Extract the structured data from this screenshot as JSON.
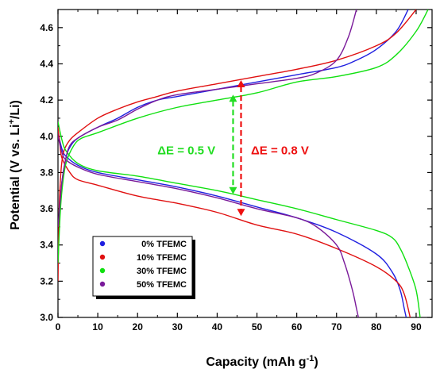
{
  "chart_data": {
    "type": "line",
    "xlabel": "Capacity (mAh g",
    "xlabel_sup": "-1",
    "xlabel_end": ")",
    "ylabel_prefix": "Potential (V vs. Li",
    "ylabel_sup": "+",
    "ylabel_suffix": "/Li)",
    "xlim": [
      0,
      94
    ],
    "ylim": [
      3.0,
      4.7
    ],
    "x_ticks": [
      0,
      10,
      20,
      30,
      40,
      50,
      60,
      70,
      80,
      90
    ],
    "y_ticks": [
      "3.0",
      "3.2",
      "3.4",
      "3.6",
      "3.8",
      "4.0",
      "4.2",
      "4.4",
      "4.6"
    ],
    "legend_position": "bottom-left",
    "series": [
      {
        "name": "0% TFEMC",
        "color": "#1f1fe0",
        "charge": [
          [
            0,
            3.3
          ],
          [
            0.4,
            3.55
          ],
          [
            1,
            3.75
          ],
          [
            2,
            3.88
          ],
          [
            3,
            3.94
          ],
          [
            5,
            3.99
          ],
          [
            10,
            4.05
          ],
          [
            15,
            4.1
          ],
          [
            20,
            4.16
          ],
          [
            25,
            4.2
          ],
          [
            30,
            4.22
          ],
          [
            40,
            4.26
          ],
          [
            50,
            4.3
          ],
          [
            60,
            4.34
          ],
          [
            70,
            4.38
          ],
          [
            75,
            4.42
          ],
          [
            80,
            4.48
          ],
          [
            85,
            4.58
          ],
          [
            88,
            4.7
          ]
        ],
        "discharge": [
          [
            0,
            4.02
          ],
          [
            1,
            3.93
          ],
          [
            2,
            3.89
          ],
          [
            5,
            3.84
          ],
          [
            10,
            3.8
          ],
          [
            20,
            3.76
          ],
          [
            30,
            3.72
          ],
          [
            40,
            3.67
          ],
          [
            50,
            3.61
          ],
          [
            60,
            3.55
          ],
          [
            70,
            3.47
          ],
          [
            80,
            3.35
          ],
          [
            84,
            3.25
          ],
          [
            86,
            3.15
          ],
          [
            87,
            3.05
          ],
          [
            87.5,
            3.0
          ]
        ]
      },
      {
        "name": "10% TFEMC",
        "color": "#e01010",
        "charge": [
          [
            0,
            3.2
          ],
          [
            0.3,
            3.6
          ],
          [
            0.8,
            3.82
          ],
          [
            1.5,
            3.92
          ],
          [
            3,
            3.98
          ],
          [
            5,
            4.02
          ],
          [
            10,
            4.1
          ],
          [
            15,
            4.15
          ],
          [
            20,
            4.19
          ],
          [
            25,
            4.22
          ],
          [
            30,
            4.25
          ],
          [
            40,
            4.29
          ],
          [
            50,
            4.33
          ],
          [
            60,
            4.37
          ],
          [
            70,
            4.42
          ],
          [
            80,
            4.5
          ],
          [
            85,
            4.57
          ],
          [
            90,
            4.7
          ]
        ],
        "discharge": [
          [
            0,
            4.05
          ],
          [
            0.5,
            3.95
          ],
          [
            1,
            3.88
          ],
          [
            3,
            3.8
          ],
          [
            5,
            3.76
          ],
          [
            10,
            3.73
          ],
          [
            20,
            3.67
          ],
          [
            30,
            3.63
          ],
          [
            40,
            3.58
          ],
          [
            50,
            3.51
          ],
          [
            60,
            3.46
          ],
          [
            70,
            3.38
          ],
          [
            80,
            3.28
          ],
          [
            85,
            3.2
          ],
          [
            87,
            3.13
          ],
          [
            88.5,
            3.0
          ]
        ]
      },
      {
        "name": "30% TFEMC",
        "color": "#10e010",
        "charge": [
          [
            0,
            3.3
          ],
          [
            0.5,
            3.55
          ],
          [
            1,
            3.7
          ],
          [
            2,
            3.85
          ],
          [
            4,
            3.95
          ],
          [
            6,
            3.99
          ],
          [
            10,
            4.02
          ],
          [
            20,
            4.1
          ],
          [
            30,
            4.16
          ],
          [
            40,
            4.2
          ],
          [
            50,
            4.24
          ],
          [
            60,
            4.3
          ],
          [
            70,
            4.33
          ],
          [
            80,
            4.38
          ],
          [
            85,
            4.45
          ],
          [
            90,
            4.58
          ],
          [
            93,
            4.7
          ]
        ],
        "discharge": [
          [
            0,
            4.08
          ],
          [
            1,
            3.98
          ],
          [
            2,
            3.92
          ],
          [
            5,
            3.85
          ],
          [
            10,
            3.81
          ],
          [
            20,
            3.78
          ],
          [
            30,
            3.74
          ],
          [
            40,
            3.7
          ],
          [
            50,
            3.65
          ],
          [
            60,
            3.6
          ],
          [
            70,
            3.54
          ],
          [
            80,
            3.48
          ],
          [
            84,
            3.44
          ],
          [
            86,
            3.38
          ],
          [
            88,
            3.28
          ],
          [
            90,
            3.15
          ],
          [
            91,
            3.0
          ]
        ]
      },
      {
        "name": "50% TFEMC",
        "color": "#7a1a9a",
        "charge": [
          [
            0,
            3.5
          ],
          [
            1,
            3.75
          ],
          [
            2,
            3.88
          ],
          [
            3,
            3.95
          ],
          [
            5,
            3.99
          ],
          [
            10,
            4.05
          ],
          [
            15,
            4.09
          ],
          [
            20,
            4.15
          ],
          [
            25,
            4.2
          ],
          [
            30,
            4.23
          ],
          [
            40,
            4.26
          ],
          [
            50,
            4.29
          ],
          [
            60,
            4.32
          ],
          [
            65,
            4.35
          ],
          [
            70,
            4.42
          ],
          [
            73,
            4.55
          ],
          [
            75,
            4.7
          ]
        ],
        "discharge": [
          [
            0,
            4.0
          ],
          [
            1,
            3.91
          ],
          [
            2,
            3.87
          ],
          [
            5,
            3.83
          ],
          [
            10,
            3.79
          ],
          [
            20,
            3.75
          ],
          [
            30,
            3.71
          ],
          [
            40,
            3.66
          ],
          [
            50,
            3.6
          ],
          [
            60,
            3.55
          ],
          [
            65,
            3.5
          ],
          [
            70,
            3.4
          ],
          [
            72,
            3.3
          ],
          [
            74,
            3.15
          ],
          [
            75,
            3.05
          ],
          [
            75.5,
            3.0
          ]
        ]
      }
    ],
    "annotations": [
      {
        "text": "ΔE = 0.5 V",
        "color": "#22dd22",
        "x": 44,
        "y_from": 3.68,
        "y_to": 4.23,
        "label_x": 25,
        "label_y": 3.9
      },
      {
        "text": "ΔE = 0.8 V",
        "color": "#ee1111",
        "x": 46,
        "y_from": 3.56,
        "y_to": 4.31,
        "label_x": 48.5,
        "label_y": 3.9
      }
    ]
  }
}
